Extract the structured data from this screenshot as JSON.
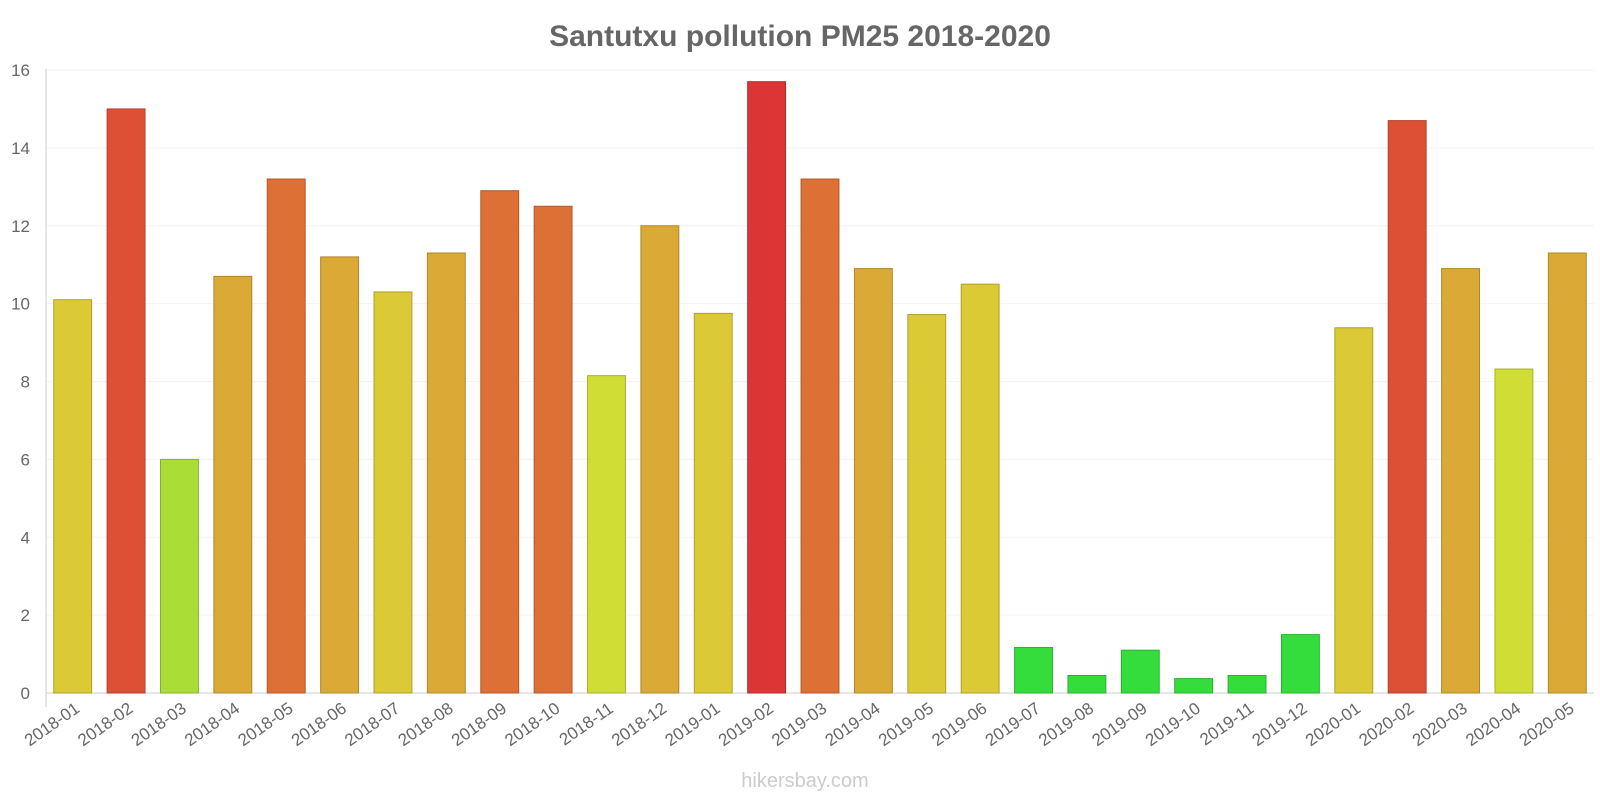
{
  "chart_data": {
    "type": "bar",
    "title": "Santutxu pollution PM25 2018-2020",
    "xlabel": "",
    "ylabel": "",
    "ylim": [
      0,
      16
    ],
    "yticks": [
      0,
      2,
      4,
      6,
      8,
      10,
      12,
      14,
      16
    ],
    "grid": true,
    "categories": [
      "2018-01",
      "2018-02",
      "2018-03",
      "2018-04",
      "2018-05",
      "2018-06",
      "2018-07",
      "2018-08",
      "2018-09",
      "2018-10",
      "2018-11",
      "2018-12",
      "2019-01",
      "2019-02",
      "2019-03",
      "2019-04",
      "2019-05",
      "2019-06",
      "2019-07",
      "2019-08",
      "2019-09",
      "2019-10",
      "2019-11",
      "2019-12",
      "2020-01",
      "2020-02",
      "2020-03",
      "2020-04",
      "2020-05"
    ],
    "values": [
      10.1,
      15.0,
      6.0,
      10.7,
      13.2,
      11.2,
      10.3,
      11.3,
      12.9,
      12.5,
      8.15,
      12.0,
      9.75,
      15.7,
      13.2,
      10.9,
      9.72,
      10.5,
      1.17,
      0.45,
      1.1,
      0.37,
      0.45,
      1.5,
      9.38,
      14.7,
      10.9,
      8.32,
      11.3
    ],
    "colors": [
      "#dbc935",
      "#dd5035",
      "#aadd35",
      "#dba935",
      "#dd7035",
      "#dba935",
      "#dbc935",
      "#dba935",
      "#dd7035",
      "#dd7035",
      "#d0dd35",
      "#dba935",
      "#dbc935",
      "#dd3535",
      "#dd7035",
      "#dba935",
      "#dbc935",
      "#dbc935",
      "#35dd3c",
      "#35dd3c",
      "#35dd3c",
      "#35dd3c",
      "#35dd3c",
      "#35dd3c",
      "#dbc935",
      "#dd5035",
      "#dba935",
      "#d0dd35",
      "#dba935"
    ]
  },
  "watermark": "hikersbay.com"
}
